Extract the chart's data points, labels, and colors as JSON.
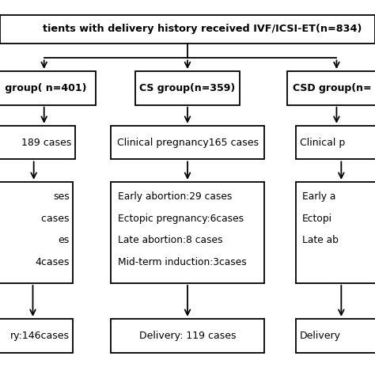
{
  "bg_color": "#ffffff",
  "box_edge_color": "#000000",
  "text_color": "#000000",
  "top_text": "tients with delivery history received IVF/ICSI-ET(n=834)",
  "g1_text": " group( n=401)",
  "g2_text": "CS group(n=359)",
  "g3_text": "CSD group(n=",
  "p1_text": "189 cases",
  "p2_text": "Clinical pregnancy165 cases",
  "p3_text": "Clinical p",
  "d1_lines": [
    "ses",
    " cases",
    "es",
    "4cases"
  ],
  "d2_lines": [
    "Early abortion:29 cases",
    "Ectopic pregnancy:6cases",
    "Late abortion:8 cases",
    "Mid-term induction:3cases"
  ],
  "d3_lines": [
    "Early a",
    "Ectopi",
    "Late ab"
  ],
  "b1_text": "ry:146cases",
  "b2_text": "Delivery: 119 cases",
  "b3_text": "Delivery"
}
